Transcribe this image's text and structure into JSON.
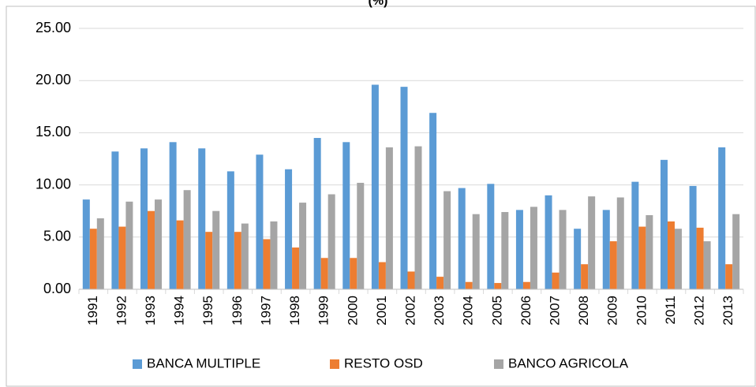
{
  "chart_data": {
    "type": "bar",
    "title": "(%)",
    "categories": [
      "1991",
      "1992",
      "1993",
      "1994",
      "1995",
      "1996",
      "1997",
      "1998",
      "1999",
      "2000",
      "2001",
      "2002",
      "2003",
      "2004",
      "2005",
      "2006",
      "2007",
      "2008",
      "2009",
      "2010",
      "2011",
      "2012",
      "2013"
    ],
    "series": [
      {
        "name": "BANCA MULTIPLE",
        "color": "#5b9bd5",
        "values": [
          8.6,
          13.2,
          13.5,
          14.1,
          13.5,
          11.3,
          12.9,
          11.5,
          14.5,
          14.1,
          19.6,
          19.4,
          16.9,
          9.7,
          10.1,
          7.6,
          9.0,
          5.8,
          7.6,
          10.3,
          12.4,
          9.9,
          13.6
        ]
      },
      {
        "name": "RESTO OSD",
        "color": "#ed7d31",
        "values": [
          5.8,
          6.0,
          7.5,
          6.6,
          5.5,
          5.5,
          4.8,
          4.0,
          3.0,
          3.0,
          2.6,
          1.7,
          1.2,
          0.7,
          0.6,
          0.7,
          1.6,
          2.4,
          4.6,
          6.0,
          6.5,
          5.9,
          2.4
        ]
      },
      {
        "name": "BANCO AGRICOLA",
        "color": "#a5a5a5",
        "values": [
          6.8,
          8.4,
          8.6,
          9.5,
          7.5,
          6.3,
          6.5,
          8.3,
          9.1,
          10.2,
          13.6,
          13.7,
          9.4,
          7.2,
          7.4,
          7.9,
          7.6,
          8.9,
          8.8,
          7.1,
          5.8,
          4.6,
          7.2
        ]
      }
    ],
    "ylim": [
      0,
      25
    ],
    "yticks": [
      {
        "value": 0,
        "label": "0.00"
      },
      {
        "value": 5,
        "label": "5.00"
      },
      {
        "value": 10,
        "label": "10.00"
      },
      {
        "value": 15,
        "label": "15.00"
      },
      {
        "value": 20,
        "label": "20.00"
      },
      {
        "value": 25,
        "label": "25.00"
      }
    ],
    "grid": true,
    "legend": "bottom"
  }
}
